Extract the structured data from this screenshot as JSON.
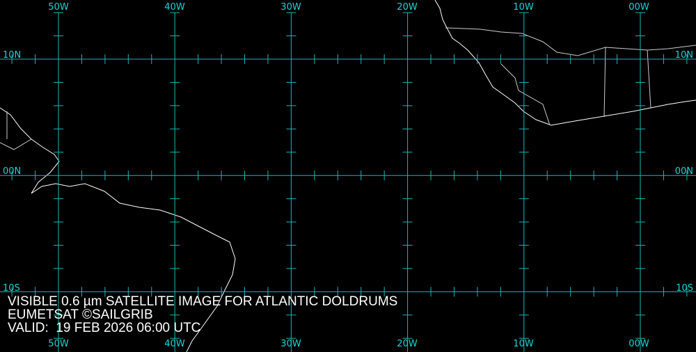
{
  "colors": {
    "grid": "#1ab8b8",
    "labels": "#19d6d6",
    "coastline": "#ffffff",
    "background": "#000000"
  },
  "longitude_labels": [
    "50W",
    "40W",
    "30W",
    "20W",
    "10W",
    "00W"
  ],
  "latitude_labels": [
    "10N",
    "00N",
    "10S"
  ],
  "caption": {
    "line1": "VISIBLE 0.6 µm SATELLITE IMAGE FOR ATLANTIC DOLDRUMS",
    "line2": "EUMETSAT ©SAILGRIB",
    "line3": "VALID:  19 FEB 2026 06:00 UTC"
  }
}
